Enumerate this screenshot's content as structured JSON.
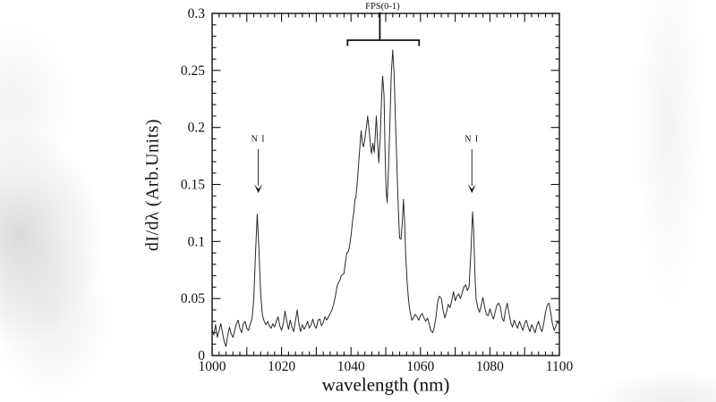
{
  "chart_data": {
    "type": "line",
    "title": "",
    "xlabel": "wavelength (nm)",
    "ylabel": "dI/dλ (Arb.Units)",
    "xlim": [
      1000,
      1100
    ],
    "ylim": [
      0,
      0.3
    ],
    "x_major_ticks": [
      1000,
      1020,
      1040,
      1060,
      1080,
      1100
    ],
    "x_medium_step": 10,
    "x_minor_step": 2,
    "y_major_ticks": [
      0,
      0.05,
      0.1,
      0.15,
      0.2,
      0.25,
      0.3
    ],
    "y_tick_labels": [
      "0",
      "0.05",
      "0.1",
      "0.15",
      "0.2",
      "0.25",
      "0.3"
    ],
    "y_minor_step": 0.01,
    "grid": false,
    "legend": "none",
    "line_color": "#2a2a2a",
    "axis_color": "#111111",
    "annotations": [
      {
        "type": "arrow-label",
        "label": "N I",
        "x": 1013.3,
        "text_y": 0.19,
        "arrow_from_y": 0.181,
        "arrow_tip_y": 0.1425
      },
      {
        "type": "arrow-label",
        "label": "N I",
        "x": 1074.8,
        "text_y": 0.19,
        "arrow_from_y": 0.181,
        "arrow_tip_y": 0.1425
      },
      {
        "type": "bracket-label",
        "label": "FPS(0-1)",
        "x1": 1039.0,
        "x2": 1059.6,
        "x_stem": 1048.3,
        "bar_y": 0.2765,
        "end_tick_y": 0.2715,
        "stem_top_y": 0.301,
        "label_y": 0.3065
      }
    ],
    "series": [
      {
        "name": "spectrum",
        "points": [
          [
            1000,
            0.023
          ],
          [
            1000.5,
            0.018
          ],
          [
            1001,
            0.027
          ],
          [
            1001.5,
            0.016
          ],
          [
            1002,
            0.022
          ],
          [
            1002.5,
            0.028
          ],
          [
            1003,
            0.02
          ],
          [
            1003.5,
            0.012
          ],
          [
            1004,
            0.008
          ],
          [
            1004.5,
            0.018
          ],
          [
            1005,
            0.025
          ],
          [
            1005.5,
            0.019
          ],
          [
            1006,
            0.016
          ],
          [
            1006.5,
            0.022
          ],
          [
            1007,
            0.028
          ],
          [
            1007.5,
            0.031
          ],
          [
            1008,
            0.024
          ],
          [
            1008.5,
            0.02
          ],
          [
            1009,
            0.028
          ],
          [
            1009.5,
            0.03
          ],
          [
            1010,
            0.024
          ],
          [
            1010.5,
            0.022
          ],
          [
            1011,
            0.028
          ],
          [
            1011.5,
            0.032
          ],
          [
            1012,
            0.05
          ],
          [
            1012.5,
            0.09
          ],
          [
            1013,
            0.124
          ],
          [
            1013.5,
            0.092
          ],
          [
            1014,
            0.053
          ],
          [
            1014.5,
            0.035
          ],
          [
            1015,
            0.03
          ],
          [
            1015.5,
            0.027
          ],
          [
            1016,
            0.03
          ],
          [
            1016.5,
            0.026
          ],
          [
            1017,
            0.024
          ],
          [
            1017.5,
            0.028
          ],
          [
            1018,
            0.025
          ],
          [
            1018.5,
            0.03
          ],
          [
            1019,
            0.034
          ],
          [
            1019.5,
            0.026
          ],
          [
            1020,
            0.022
          ],
          [
            1020.5,
            0.028
          ],
          [
            1021,
            0.039
          ],
          [
            1021.5,
            0.03
          ],
          [
            1022,
            0.023
          ],
          [
            1022.5,
            0.031
          ],
          [
            1023,
            0.025
          ],
          [
            1023.5,
            0.021
          ],
          [
            1024,
            0.03
          ],
          [
            1024.5,
            0.04
          ],
          [
            1025,
            0.028
          ],
          [
            1025.5,
            0.021
          ],
          [
            1026,
            0.027
          ],
          [
            1026.5,
            0.023
          ],
          [
            1027,
            0.026
          ],
          [
            1027.5,
            0.03
          ],
          [
            1028,
            0.024
          ],
          [
            1028.5,
            0.027
          ],
          [
            1029,
            0.032
          ],
          [
            1029.5,
            0.026
          ],
          [
            1030,
            0.024
          ],
          [
            1030.5,
            0.031
          ],
          [
            1031,
            0.032
          ],
          [
            1031.5,
            0.026
          ],
          [
            1032,
            0.029
          ],
          [
            1032.5,
            0.034
          ],
          [
            1033,
            0.031
          ],
          [
            1033.5,
            0.034
          ],
          [
            1034,
            0.037
          ],
          [
            1034.5,
            0.04
          ],
          [
            1035,
            0.045
          ],
          [
            1035.5,
            0.052
          ],
          [
            1036,
            0.061
          ],
          [
            1036.4,
            0.064
          ],
          [
            1036.8,
            0.066
          ],
          [
            1037.2,
            0.07
          ],
          [
            1037.6,
            0.071
          ],
          [
            1038,
            0.072
          ],
          [
            1038.4,
            0.082
          ],
          [
            1038.8,
            0.09
          ],
          [
            1039.2,
            0.091
          ],
          [
            1039.6,
            0.096
          ],
          [
            1040,
            0.105
          ],
          [
            1040.5,
            0.119
          ],
          [
            1040.8,
            0.125
          ],
          [
            1041.1,
            0.137
          ],
          [
            1041.4,
            0.138
          ],
          [
            1041.8,
            0.152
          ],
          [
            1042.2,
            0.168
          ],
          [
            1042.6,
            0.185
          ],
          [
            1042.9,
            0.197
          ],
          [
            1043.3,
            0.186
          ],
          [
            1043.6,
            0.183
          ],
          [
            1044,
            0.19
          ],
          [
            1044.4,
            0.2
          ],
          [
            1044.8,
            0.21
          ],
          [
            1045.2,
            0.198
          ],
          [
            1045.6,
            0.185
          ],
          [
            1045.9,
            0.177
          ],
          [
            1046.3,
            0.186
          ],
          [
            1046.7,
            0.178
          ],
          [
            1047,
            0.195
          ],
          [
            1047.3,
            0.21
          ],
          [
            1047.6,
            0.19
          ],
          [
            1048,
            0.169
          ],
          [
            1048.4,
            0.19
          ],
          [
            1048.8,
            0.225
          ],
          [
            1049.1,
            0.245
          ],
          [
            1049.5,
            0.228
          ],
          [
            1049.8,
            0.18
          ],
          [
            1050.1,
            0.145
          ],
          [
            1050.4,
            0.134
          ],
          [
            1050.8,
            0.165
          ],
          [
            1051.2,
            0.205
          ],
          [
            1051.6,
            0.247
          ],
          [
            1052,
            0.268
          ],
          [
            1052.4,
            0.248
          ],
          [
            1052.8,
            0.205
          ],
          [
            1053.2,
            0.168
          ],
          [
            1053.6,
            0.13
          ],
          [
            1054,
            0.103
          ],
          [
            1054.4,
            0.102
          ],
          [
            1054.8,
            0.118
          ],
          [
            1055.1,
            0.137
          ],
          [
            1055.4,
            0.118
          ],
          [
            1055.8,
            0.085
          ],
          [
            1056.2,
            0.062
          ],
          [
            1056.6,
            0.048
          ],
          [
            1057,
            0.038
          ],
          [
            1057.5,
            0.031
          ],
          [
            1058,
            0.033
          ],
          [
            1058.5,
            0.036
          ],
          [
            1059,
            0.034
          ],
          [
            1059.5,
            0.031
          ],
          [
            1060,
            0.035
          ],
          [
            1060.5,
            0.037
          ],
          [
            1061,
            0.033
          ],
          [
            1061.5,
            0.03
          ],
          [
            1062,
            0.033
          ],
          [
            1062.5,
            0.028
          ],
          [
            1063,
            0.022
          ],
          [
            1063.5,
            0.02
          ],
          [
            1064,
            0.025
          ],
          [
            1064.5,
            0.035
          ],
          [
            1065,
            0.048
          ],
          [
            1065.5,
            0.052
          ],
          [
            1066,
            0.05
          ],
          [
            1066.5,
            0.04
          ],
          [
            1067,
            0.033
          ],
          [
            1067.5,
            0.038
          ],
          [
            1068,
            0.045
          ],
          [
            1068.5,
            0.042
          ],
          [
            1069,
            0.048
          ],
          [
            1069.5,
            0.056
          ],
          [
            1070,
            0.048
          ],
          [
            1070.5,
            0.052
          ],
          [
            1071,
            0.054
          ],
          [
            1071.5,
            0.05
          ],
          [
            1072,
            0.055
          ],
          [
            1072.5,
            0.06
          ],
          [
            1073,
            0.062
          ],
          [
            1073.5,
            0.057
          ],
          [
            1074,
            0.06
          ],
          [
            1074.5,
            0.09
          ],
          [
            1075,
            0.126
          ],
          [
            1075.3,
            0.11
          ],
          [
            1075.7,
            0.07
          ],
          [
            1076,
            0.05
          ],
          [
            1076.5,
            0.042
          ],
          [
            1077,
            0.038
          ],
          [
            1077.5,
            0.044
          ],
          [
            1078,
            0.051
          ],
          [
            1078.5,
            0.042
          ],
          [
            1079,
            0.036
          ],
          [
            1079.5,
            0.035
          ],
          [
            1080,
            0.041
          ],
          [
            1080.5,
            0.036
          ],
          [
            1081,
            0.032
          ],
          [
            1081.5,
            0.038
          ],
          [
            1082,
            0.044
          ],
          [
            1082.5,
            0.046
          ],
          [
            1083,
            0.043
          ],
          [
            1083.5,
            0.033
          ],
          [
            1084,
            0.03
          ],
          [
            1084.5,
            0.04
          ],
          [
            1085,
            0.046
          ],
          [
            1085.5,
            0.037
          ],
          [
            1086,
            0.029
          ],
          [
            1086.5,
            0.025
          ],
          [
            1087,
            0.031
          ],
          [
            1087.5,
            0.027
          ],
          [
            1088,
            0.024
          ],
          [
            1088.5,
            0.03
          ],
          [
            1089,
            0.026
          ],
          [
            1089.5,
            0.022
          ],
          [
            1090,
            0.028
          ],
          [
            1090.5,
            0.031
          ],
          [
            1091,
            0.025
          ],
          [
            1091.5,
            0.021
          ],
          [
            1092,
            0.027
          ],
          [
            1092.5,
            0.024
          ],
          [
            1093,
            0.02
          ],
          [
            1093.5,
            0.026
          ],
          [
            1094,
            0.03
          ],
          [
            1094.5,
            0.024
          ],
          [
            1095,
            0.021
          ],
          [
            1095.5,
            0.028
          ],
          [
            1096,
            0.038
          ],
          [
            1096.5,
            0.044
          ],
          [
            1097,
            0.046
          ],
          [
            1097.5,
            0.038
          ],
          [
            1098,
            0.028
          ],
          [
            1098.5,
            0.022
          ],
          [
            1099,
            0.026
          ],
          [
            1099.5,
            0.03
          ],
          [
            1100,
            0.027
          ]
        ]
      }
    ]
  }
}
